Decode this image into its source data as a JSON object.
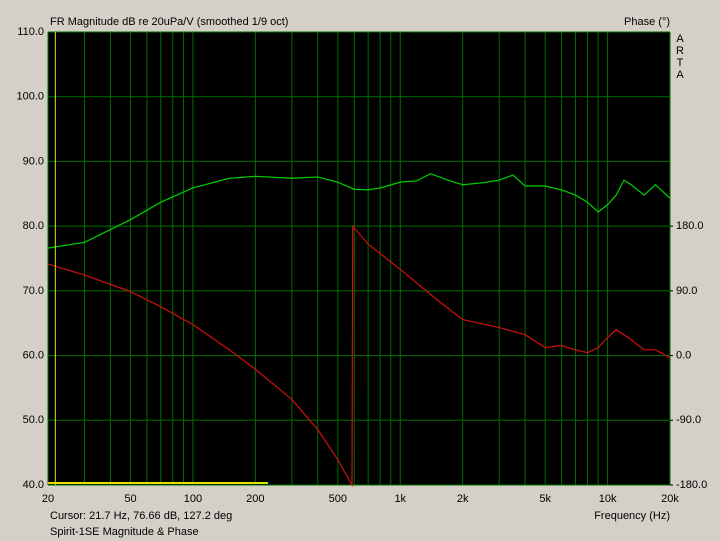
{
  "chart_data": {
    "type": "line",
    "title": "FR Magnitude dB re 20uPa/V (smoothed 1/9 oct)",
    "y2_label": "Phase (°)",
    "brand": "ARTA",
    "x_label": "Frequency (Hz)",
    "cursor": {
      "label": "Cursor: 21.7 Hz, 76.66 dB, 127.2 deg",
      "x": 21.7,
      "color": "#e0e000"
    },
    "range_marker": [
      20,
      230
    ],
    "footer": "Spirit-1SE Magnitude & Phase",
    "xscale": "log",
    "grid": true,
    "grid_color": "#007000",
    "xlim": [
      20,
      20000
    ],
    "xticks": [
      20,
      50,
      100,
      200,
      500,
      {
        "value": 1000,
        "label": "1k"
      },
      {
        "value": 2000,
        "label": "2k"
      },
      {
        "value": 5000,
        "label": "5k"
      },
      {
        "value": 10000,
        "label": "10k"
      },
      {
        "value": 20000,
        "label": "20k"
      }
    ],
    "xminorticks": [
      30,
      40,
      60,
      70,
      80,
      90,
      300,
      400,
      600,
      700,
      800,
      900,
      3000,
      4000,
      6000,
      7000,
      8000,
      9000
    ],
    "ylim": [
      40,
      110
    ],
    "yticks": [
      {
        "value": 40,
        "label": "40.0"
      },
      {
        "value": 50,
        "label": "50.0"
      },
      {
        "value": 60,
        "label": "60.0"
      },
      {
        "value": 70,
        "label": "70.0"
      },
      {
        "value": 80,
        "label": "80.0"
      },
      {
        "value": 90,
        "label": "90.0"
      },
      {
        "value": 100,
        "label": "100.0"
      },
      {
        "value": 110,
        "label": "110.0"
      }
    ],
    "y2lim": [
      -180,
      450
    ],
    "y2ticks": [
      {
        "value": -180,
        "label": "-180.0"
      },
      {
        "value": -90,
        "label": "-90.0"
      },
      {
        "value": 0,
        "label": "0.0"
      },
      {
        "value": 90,
        "label": "90.0"
      },
      {
        "value": 180,
        "label": "180.0"
      }
    ],
    "series": [
      {
        "color": "#00d000",
        "x": [
          20,
          30,
          50,
          70,
          100,
          150,
          200,
          300,
          400,
          500,
          600,
          700,
          800,
          1000,
          1200,
          1400,
          1700,
          2000,
          2500,
          3000,
          3500,
          4000,
          5000,
          6000,
          7000,
          8000,
          9000,
          10000,
          11000,
          12000,
          13000,
          15000,
          17000,
          20000
        ],
        "values": [
          76.6,
          77.5,
          81.0,
          83.7,
          85.9,
          87.4,
          87.7,
          87.4,
          87.6,
          86.8,
          85.7,
          85.6,
          85.9,
          86.8,
          87.0,
          88.1,
          87.1,
          86.4,
          86.7,
          87.1,
          87.9,
          86.2,
          86.2,
          85.6,
          84.8,
          83.7,
          82.2,
          83.3,
          84.8,
          87.1,
          86.4,
          84.8,
          86.4,
          84.3
        ]
      },
      {
        "color": "#d01010",
        "axis": "y2",
        "x": [
          20,
          30,
          50,
          70,
          100,
          150,
          200,
          300,
          400,
          500,
          585,
          590,
          700,
          1000,
          1500,
          2000,
          3000,
          4000,
          5000,
          6000,
          7000,
          8000,
          9000,
          10000,
          11000,
          13000,
          15000,
          17000,
          20000
        ],
        "values": [
          127.2,
          112,
          89,
          68,
          43,
          8,
          -19,
          -61,
          -103,
          -145,
          -180,
          180,
          155,
          120,
          78,
          50,
          39,
          29,
          11,
          14,
          8,
          4,
          11,
          25,
          36,
          22,
          8,
          8,
          -3
        ]
      }
    ]
  }
}
